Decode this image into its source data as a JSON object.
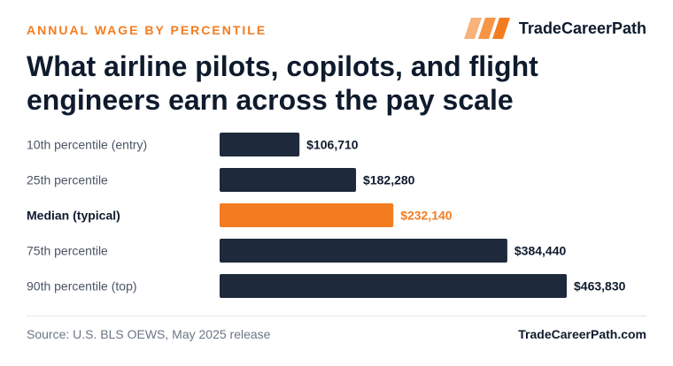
{
  "header": {
    "kicker": "ANNUAL WAGE BY PERCENTILE",
    "brand": "TradeCareerPath",
    "brand_logo_icon": "striped-parallelogram-logo",
    "title": "What airline pilots, copilots, and flight engineers earn across the pay scale"
  },
  "colors": {
    "accent": "#f47c20",
    "bar_default": "#1e293b",
    "text_dark": "#0f1b2d",
    "text_muted": "#4a5565"
  },
  "chart_data": {
    "type": "bar",
    "orientation": "horizontal",
    "categories": [
      "10th percentile (entry)",
      "25th percentile",
      "Median (typical)",
      "75th percentile",
      "90th percentile (top)"
    ],
    "values": [
      106710,
      182280,
      232140,
      384440,
      463830
    ],
    "value_labels": [
      "$106,710",
      "$182,280",
      "$232,140",
      "$384,440",
      "$463,830"
    ],
    "highlight_index": 2,
    "xlim": [
      0,
      463830
    ],
    "grid": false,
    "legend": "none"
  },
  "footer": {
    "source": "Source: U.S. BLS OEWS, May 2025 release",
    "site": "TradeCareerPath.com"
  }
}
